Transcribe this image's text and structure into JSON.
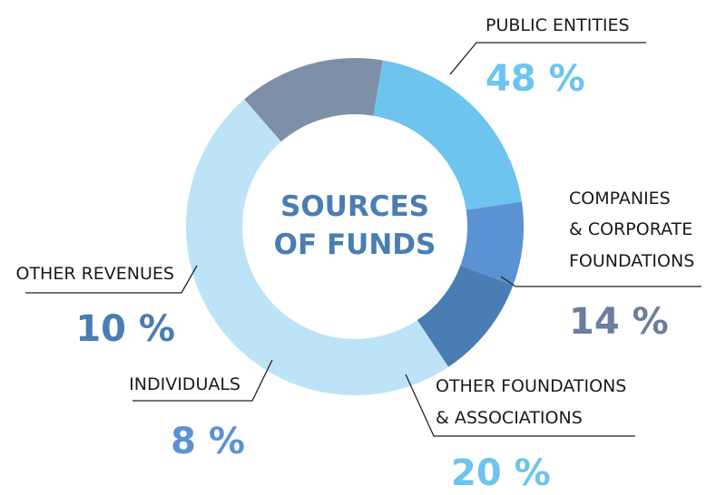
{
  "chart_data": {
    "type": "pie",
    "title": "SOURCES OF FUNDS",
    "title_lines": [
      "SOURCES",
      "OF FUNDS"
    ],
    "slices": [
      {
        "name": "PUBLIC ENTITIES",
        "label_lines": [
          "PUBLIC ENTITIES"
        ],
        "value": 48,
        "value_label": "48 %",
        "color": "#bde3f7",
        "value_color": "#6cc4ef"
      },
      {
        "name": "COMPANIES & CORPORATE FOUNDATIONS",
        "label_lines": [
          "COMPANIES",
          "& CORPORATE",
          "FOUNDATIONS"
        ],
        "value": 14,
        "value_label": "14 %",
        "color": "#7e8fa8",
        "value_color": "#6b7f9c"
      },
      {
        "name": "OTHER FOUNDATIONS & ASSOCIATIONS",
        "label_lines": [
          "OTHER FOUNDATIONS",
          "& ASSOCIATIONS"
        ],
        "value": 20,
        "value_label": "20 %",
        "color": "#6cc4ef",
        "value_color": "#6cc4ef"
      },
      {
        "name": "INDIVIDUALS",
        "label_lines": [
          "INDIVIDUALS"
        ],
        "value": 8,
        "value_label": "8 %",
        "color": "#5b92d4",
        "value_color": "#5b92d4"
      },
      {
        "name": "OTHER REVENUES",
        "label_lines": [
          "OTHER REVENUES"
        ],
        "value": 10,
        "value_label": "10 %",
        "color": "#4a7db3",
        "value_color": "#4a7db3"
      }
    ]
  }
}
